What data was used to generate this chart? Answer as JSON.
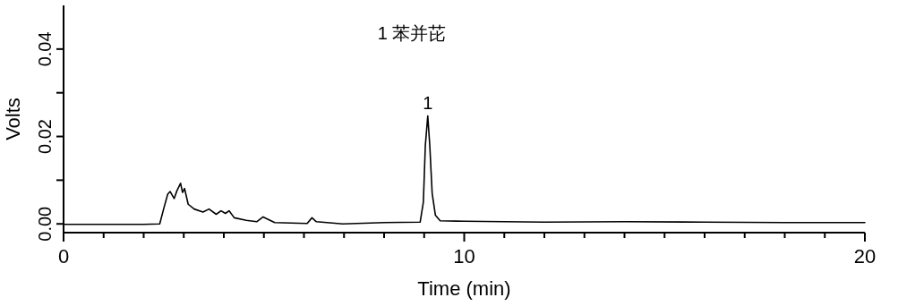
{
  "chart_data": {
    "type": "line",
    "xlabel": "Time (min)",
    "ylabel": "Volts",
    "xlim": [
      0,
      20
    ],
    "ylim": [
      -0.002,
      0.05
    ],
    "xticks": [
      0,
      {
        "value": 1,
        "label": null
      },
      {
        "value": 2,
        "label": null
      },
      {
        "value": 3,
        "label": null
      },
      {
        "value": 4,
        "label": null
      },
      {
        "value": 5,
        "label": null
      },
      {
        "value": 6,
        "label": null
      },
      {
        "value": 7,
        "label": null
      },
      {
        "value": 8,
        "label": null
      },
      {
        "value": 9,
        "label": null
      },
      10,
      {
        "value": 11,
        "label": null
      },
      {
        "value": 12,
        "label": null
      },
      {
        "value": 13,
        "label": null
      },
      {
        "value": 14,
        "label": null
      },
      {
        "value": 15,
        "label": null
      },
      {
        "value": 16,
        "label": null
      },
      {
        "value": 17,
        "label": null
      },
      {
        "value": 18,
        "label": null
      },
      {
        "value": 19,
        "label": null
      },
      20
    ],
    "yticks": [
      {
        "value": 0,
        "label": "0.00"
      },
      {
        "value": 0.01,
        "label": null
      },
      0.02,
      {
        "value": 0.03,
        "label": null
      },
      0.04
    ],
    "annotations": [
      "1  苯并芘",
      {
        "text": "1",
        "x": 9.09,
        "y": 0.0247
      }
    ],
    "series": [
      {
        "color": "#000000",
        "x": [
          0,
          1,
          2,
          2.4,
          2.5,
          2.6,
          2.66,
          2.76,
          2.83,
          2.92,
          2.97,
          3.02,
          3.11,
          3.26,
          3.48,
          3.63,
          3.81,
          3.93,
          4.04,
          4.13,
          4.26,
          4.56,
          4.82,
          4.98,
          5.27,
          6.08,
          6.2,
          6.31,
          6.97,
          8,
          8.9,
          8.98,
          9.03,
          9.09,
          9.14,
          9.2,
          9.28,
          9.4,
          10,
          12,
          14,
          16,
          18,
          20
        ],
        "values": [
          -0.0001,
          -0.0001,
          -0.0001,
          0,
          0.0035,
          0.0068,
          0.0074,
          0.0058,
          0.0076,
          0.0093,
          0.0072,
          0.0081,
          0.0045,
          0.0034,
          0.0027,
          0.0034,
          0.0022,
          0.003,
          0.0024,
          0.003,
          0.0014,
          0.0008,
          0.0005,
          0.0016,
          0.0003,
          0.0001,
          0.0014,
          0.0005,
          0,
          0.0003,
          0.0004,
          0.005,
          0.018,
          0.0247,
          0.018,
          0.007,
          0.002,
          0.0007,
          0.0006,
          0.0004,
          0.0005,
          0.0004,
          0.0003,
          0.0003
        ]
      }
    ]
  }
}
